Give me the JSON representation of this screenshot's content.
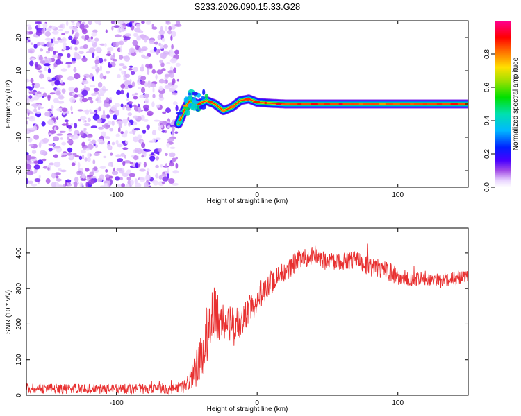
{
  "figure_title": "S233.2026.090.15.33.G28",
  "colors": {
    "snr_line": "#e83030",
    "background": "#ffffff",
    "scatter_purple": "#7a1fe0"
  },
  "chart_data": [
    {
      "type": "heatmap",
      "title": "S233.2026.090.15.33.G28",
      "xlabel": "Height of straight line (km)",
      "ylabel": "Frequency (Hz)",
      "xlim": [
        -164,
        150
      ],
      "ylim": [
        -25,
        25
      ],
      "xticks": [
        -100,
        0,
        100
      ],
      "yticks": [
        -20,
        -10,
        0,
        10,
        20
      ],
      "colorbar": {
        "label": "Normalized spectral amplitude",
        "range": [
          0,
          1
        ],
        "ticks": [
          0.0,
          0.2,
          0.4,
          0.6,
          0.8
        ],
        "colormap": "rainbow (white → purple → blue → cyan → green → yellow → red → magenta)"
      },
      "features": {
        "noise_region_x": [
          -164,
          -56
        ],
        "noise_amplitude_range": [
          0.0,
          0.15
        ],
        "signal_track": [
          {
            "x": -56,
            "y": -6
          },
          {
            "x": -52,
            "y": -2
          },
          {
            "x": -48,
            "y": 1
          },
          {
            "x": -42,
            "y": 0
          },
          {
            "x": -36,
            "y": 1
          },
          {
            "x": -30,
            "y": 0
          },
          {
            "x": -24,
            "y": -2
          },
          {
            "x": -18,
            "y": -1
          },
          {
            "x": -12,
            "y": 1
          },
          {
            "x": -6,
            "y": 1.5
          },
          {
            "x": 0,
            "y": 0.5
          },
          {
            "x": 10,
            "y": 0.2
          },
          {
            "x": 20,
            "y": 0
          },
          {
            "x": 150,
            "y": 0
          }
        ],
        "signal_amplitude_range": [
          0.5,
          0.95
        ]
      }
    },
    {
      "type": "line",
      "xlabel": "Height of straight line (km)",
      "ylabel": "SNR (10 * v/v)",
      "xlim": [
        -164,
        150
      ],
      "ylim": [
        0,
        470
      ],
      "xticks": [
        -100,
        0,
        100
      ],
      "yticks": [
        0,
        100,
        200,
        300,
        400
      ],
      "series": [
        {
          "name": "SNR",
          "trend_x": [
            -164,
            -60,
            -50,
            -45,
            -40,
            -35,
            -30,
            -25,
            -20,
            -15,
            -10,
            -5,
            0,
            10,
            20,
            30,
            40,
            50,
            60,
            70,
            80,
            90,
            100,
            110,
            120,
            130,
            140,
            150
          ],
          "trend_y": [
            18,
            18,
            30,
            60,
            110,
            180,
            230,
            210,
            195,
            200,
            215,
            240,
            275,
            320,
            350,
            380,
            395,
            375,
            375,
            380,
            365,
            355,
            335,
            325,
            330,
            320,
            330,
            330
          ],
          "noise_amplitude_y": [
            14,
            14,
            25,
            45,
            70,
            90,
            85,
            60,
            55,
            50,
            45,
            45,
            40,
            35,
            30,
            30,
            28,
            25,
            25,
            25,
            30,
            30,
            25,
            20,
            20,
            20,
            20,
            20
          ]
        }
      ]
    }
  ]
}
